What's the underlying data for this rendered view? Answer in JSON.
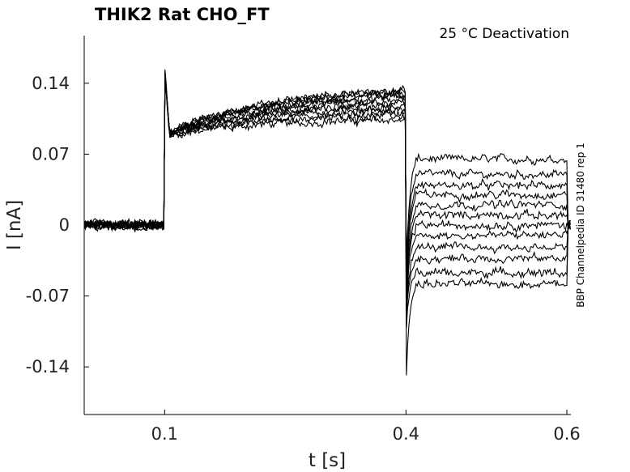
{
  "chart_data": {
    "type": "line",
    "title": "THIK2  Rat  CHO_FT",
    "condition": "25 °C  Deactivation",
    "side_label": "BBP Channelpedia ID 31480 rep 1",
    "xlabel": "t [s]",
    "ylabel": "I [nA]",
    "xlim": [
      0.0,
      0.605
    ],
    "ylim": [
      -0.187,
      0.187
    ],
    "x_ticks": [
      0.1,
      0.4,
      0.6
    ],
    "x_tick_labels": [
      "0.1",
      "0.4",
      "0.6"
    ],
    "y_ticks": [
      0.14,
      0.07,
      0,
      -0.07,
      -0.14
    ],
    "y_tick_labels": [
      "0.14",
      "0.07",
      "0",
      "-0.07",
      "-0.14"
    ],
    "grid": false,
    "series_color": "#000000",
    "protocol": {
      "activation_start_s": 0.1,
      "activation_end_s": 0.4,
      "tail_end_s": 0.6,
      "activation_initial_current_nA": 0.088,
      "activation_final_current_nA": [
        0.104,
        0.108,
        0.111,
        0.114,
        0.117,
        0.12,
        0.123,
        0.126,
        0.128,
        0.13,
        0.132
      ],
      "tail_step_current_nA": [
        0.065,
        0.05,
        0.039,
        0.03,
        0.02,
        0.01,
        0.0,
        -0.01,
        -0.022,
        -0.033,
        -0.047,
        -0.058
      ],
      "activation_peak_nA": 0.155,
      "tail_spike_min_nA": -0.155
    }
  }
}
